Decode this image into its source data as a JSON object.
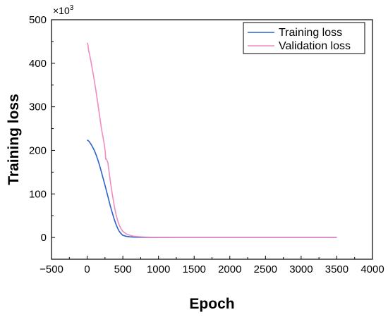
{
  "chart_data": {
    "type": "line",
    "title": "",
    "xlabel": "Epoch",
    "ylabel": "Training loss",
    "y_multiplier_base": "×10",
    "y_multiplier_exp": "3",
    "xlim": [
      -500,
      4000
    ],
    "ylim": [
      -50,
      500
    ],
    "xticks": [
      -500,
      0,
      500,
      1000,
      1500,
      2000,
      2500,
      3000,
      3500,
      4000
    ],
    "yticks": [
      0,
      100,
      200,
      300,
      400,
      500
    ],
    "grid": false,
    "legend_position": "top-right",
    "series": [
      {
        "name": "Training loss",
        "color": "#2a62c9",
        "x": [
          0,
          25,
          50,
          75,
          100,
          125,
          150,
          175,
          200,
          225,
          250,
          275,
          300,
          325,
          350,
          375,
          400,
          425,
          450,
          475,
          500,
          550,
          600,
          650,
          700,
          800,
          900,
          1000,
          1100,
          1200,
          1500,
          2000,
          2500,
          3000,
          3500
        ],
        "y": [
          224,
          221,
          215,
          208,
          200,
          190,
          178,
          165,
          150,
          135,
          120,
          104,
          88,
          72,
          58,
          44,
          32,
          22,
          14,
          9,
          5,
          2.5,
          1.5,
          0.8,
          0.5,
          0.2,
          0.1,
          0,
          0,
          0,
          0,
          0,
          0,
          0,
          0
        ]
      },
      {
        "name": "Validation loss",
        "color": "#f08cc0",
        "x": [
          0,
          10,
          20,
          40,
          60,
          80,
          100,
          120,
          140,
          160,
          180,
          200,
          220,
          240,
          255,
          260,
          270,
          280,
          290,
          300,
          320,
          340,
          360,
          380,
          400,
          425,
          450,
          475,
          500,
          550,
          600,
          650,
          700,
          750,
          800,
          900,
          1000,
          1100,
          1200,
          1500,
          2000,
          2500,
          3000,
          3500
        ],
        "y": [
          447,
          443,
          430,
          415,
          398,
          380,
          360,
          340,
          318,
          296,
          273,
          250,
          232,
          214,
          195,
          180,
          180,
          176,
          172,
          160,
          135,
          112,
          92,
          73,
          56,
          40,
          28,
          20,
          14,
          8,
          5,
          3,
          2,
          1.5,
          1,
          0.5,
          0.3,
          0.2,
          0.1,
          0,
          0,
          0,
          0,
          0
        ]
      }
    ]
  }
}
